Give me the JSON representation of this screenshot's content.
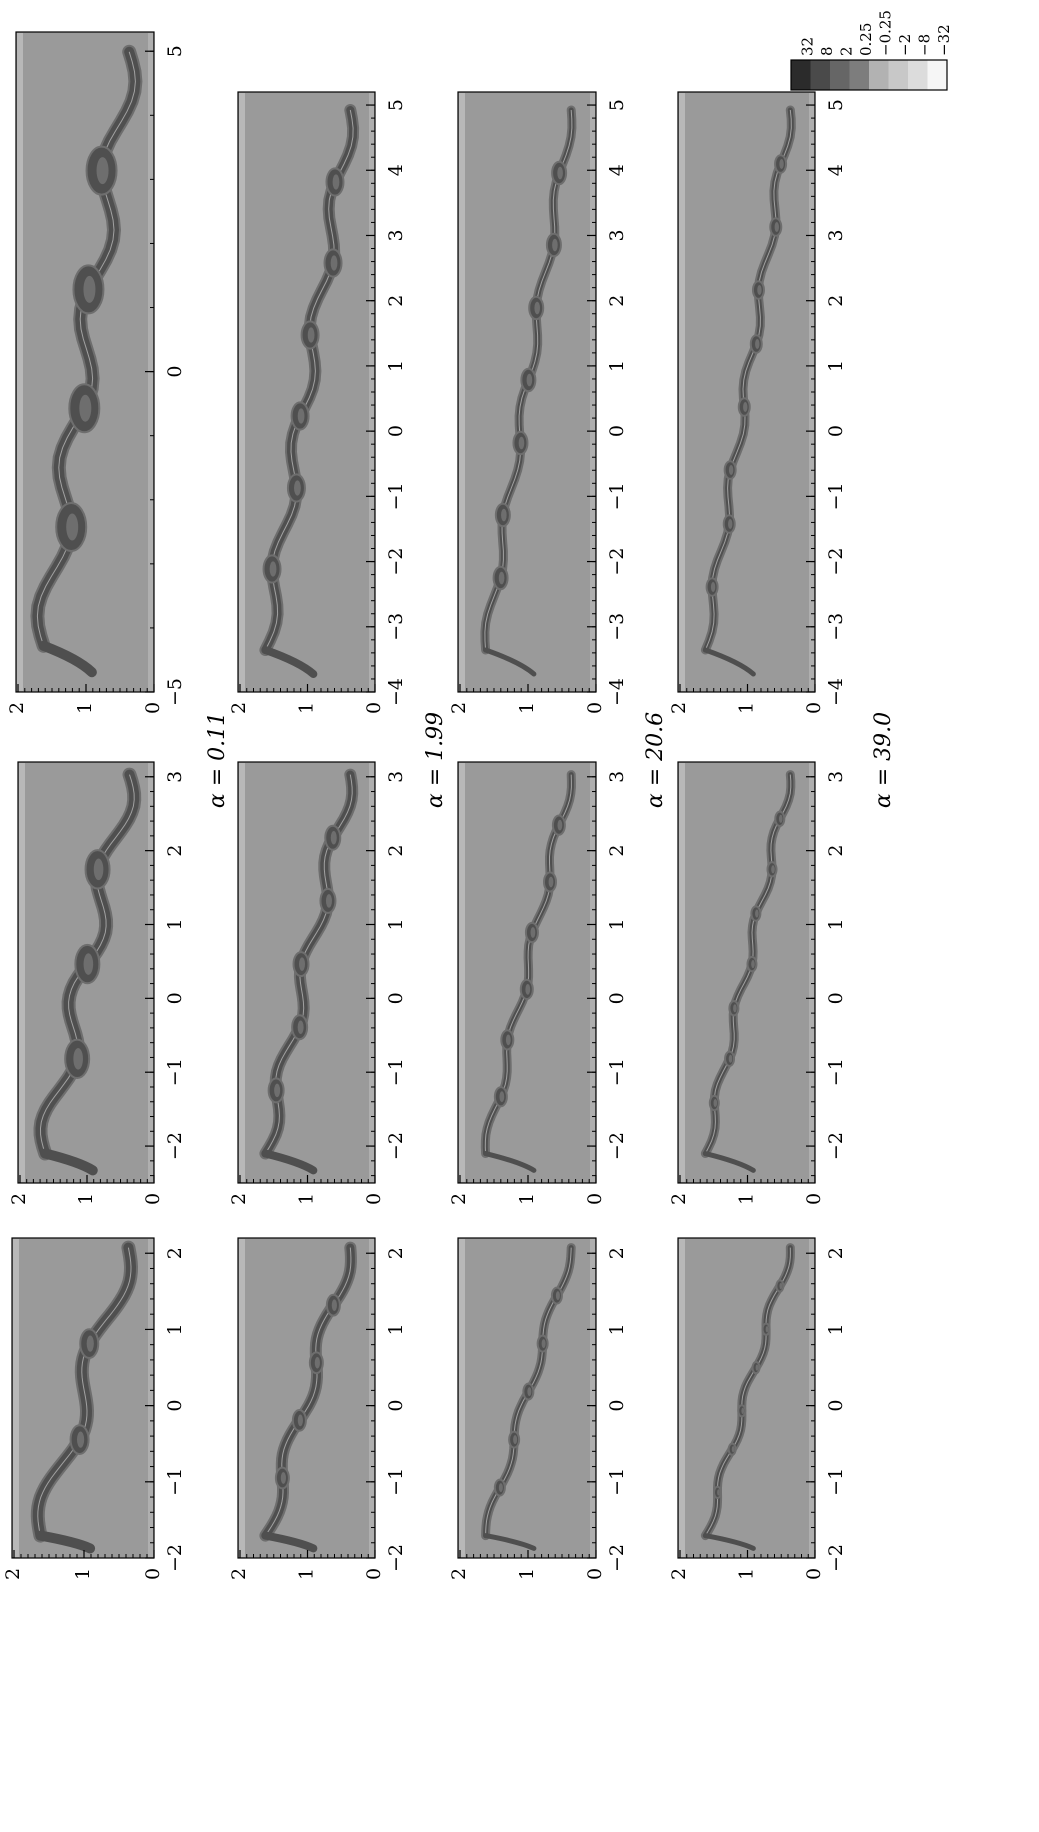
{
  "colorbar": {
    "levels": [
      "32",
      "8",
      "2",
      "0.25",
      "−0.25",
      "−2",
      "−8",
      "−32"
    ],
    "colors": [
      "#2b2b2b",
      "#4a4a4a",
      "#666666",
      "#7d7d7d",
      "#b2b2b2",
      "#c8c8c8",
      "#dcdcdc",
      "#f6f6f6"
    ]
  },
  "colors": {
    "background": "#9a9a9a",
    "film": "#6e6e6e",
    "core": "#4f4f4f",
    "highlight": "#d9d9d9",
    "wall": "#c4c4c4"
  },
  "rows": [
    {
      "alpha_label": "α = 0.11"
    },
    {
      "alpha_label": "α = 1.99"
    },
    {
      "alpha_label": "α = 20.6"
    },
    {
      "alpha_label": "α = 39.0"
    }
  ],
  "columns": [
    {
      "xlim": [
        -2,
        2.2
      ],
      "xticks": [
        "−2",
        "−1",
        "0",
        "1",
        "2"
      ],
      "yticks": [
        "0",
        "1",
        "2"
      ]
    },
    {
      "xlim": [
        -2.5,
        3.2
      ],
      "xticks": [
        "−2",
        "−1",
        "0",
        "1",
        "2",
        "3"
      ],
      "yticks": [
        "0",
        "1",
        "2"
      ]
    },
    {
      "xlim": [
        -4,
        5.2
      ],
      "xticks": [
        "−4",
        "−3",
        "−2",
        "−1",
        "0",
        "1",
        "2",
        "3",
        "4",
        "5"
      ],
      "yticks": [
        "0",
        "1",
        "2"
      ]
    }
  ],
  "top_right_axis": {
    "xlim": [
      -5,
      5.3
    ],
    "xticks": [
      "−5",
      "0",
      "5"
    ]
  }
}
